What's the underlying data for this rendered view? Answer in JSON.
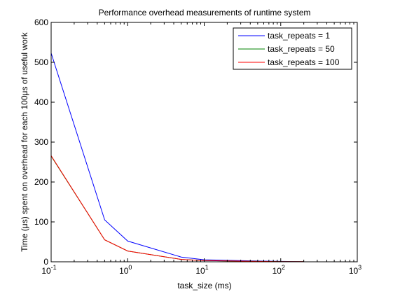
{
  "chart_data": {
    "type": "line",
    "title": "Performance overhead measurements of runtime system",
    "xlabel": "task_size (ms)",
    "ylabel": "Time (μs) spent on overhead for each 100μs of useful work",
    "x_scale": "log",
    "xlim": [
      0.1,
      1000
    ],
    "ylim": [
      0,
      600
    ],
    "x_ticks": [
      0.1,
      1,
      10,
      100,
      1000
    ],
    "x_tick_base": "10",
    "x_tick_exponents": [
      "-1",
      "0",
      "1",
      "2",
      "3"
    ],
    "y_ticks": [
      "0",
      "100",
      "200",
      "300",
      "400",
      "500",
      "600"
    ],
    "grid": false,
    "legend_position": "top-right",
    "x": [
      0.1,
      0.5,
      1,
      5,
      10,
      50,
      100,
      200
    ],
    "series": [
      {
        "name": "task_repeats = 1",
        "color": "#0000ff",
        "values": [
          523,
          105,
          52,
          12,
          5,
          2,
          1,
          0.5
        ]
      },
      {
        "name": "task_repeats = 50",
        "color": "#008000",
        "values": [
          265,
          55,
          27,
          6,
          3,
          1,
          0.5,
          0.3
        ]
      },
      {
        "name": "task_repeats = 100",
        "color": "#ff0000",
        "values": [
          266,
          55,
          27,
          6,
          3,
          1,
          0.5,
          0.3
        ]
      }
    ]
  }
}
